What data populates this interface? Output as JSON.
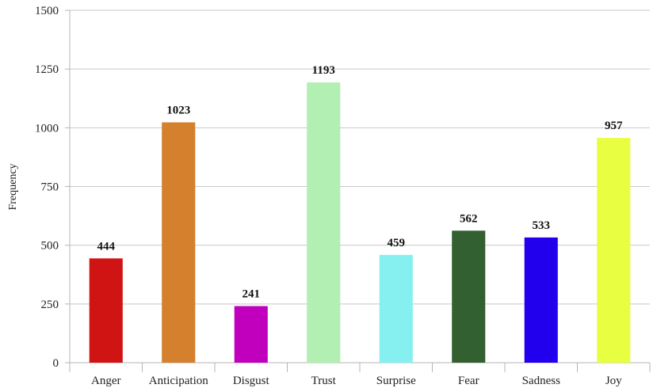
{
  "chart_data": {
    "type": "bar",
    "title": "",
    "xlabel": "",
    "ylabel": "Frequency",
    "ylim": [
      0,
      1500
    ],
    "yticks": [
      0,
      250,
      500,
      750,
      1000,
      1250,
      1500
    ],
    "grid": true,
    "legend": "none",
    "categories": [
      "Anger",
      "Anticipation",
      "Disgust",
      "Trust",
      "Surprise",
      "Fear",
      "Sadness",
      "Joy"
    ],
    "values": [
      444,
      1023,
      241,
      1193,
      459,
      562,
      533,
      957
    ],
    "data_labels": [
      "444",
      "1023",
      "241",
      "1193",
      "459",
      "562",
      "533",
      "957"
    ],
    "colors": [
      "#d01414",
      "#d4802c",
      "#c000bc",
      "#b2efb2",
      "#86f0f0",
      "#336030",
      "#2200ee",
      "#e8fe40"
    ]
  }
}
